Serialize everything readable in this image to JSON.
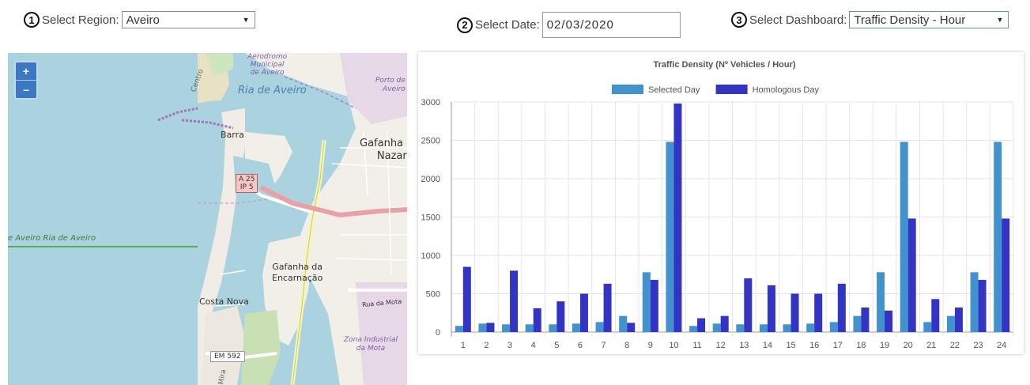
{
  "controls": {
    "region": {
      "step": "1",
      "label": "Select Region:",
      "value": "Aveiro"
    },
    "date": {
      "step": "2",
      "label": "Select Date:",
      "value": "02/03/2020"
    },
    "dashboard": {
      "step": "3",
      "label": "Select Dashboard:",
      "value": "Traffic Density - Hour"
    }
  },
  "map": {
    "zoom_in": "+",
    "zoom_out": "–",
    "labels": {
      "aerodromo": "Aerodromo\nMunicipal\nde Aveiro",
      "centro": "Centro",
      "ria_top": "Ria de Aveiro",
      "porto": "Porto de\nAveiro",
      "barra": "Barra",
      "gafanha_nazare": "Gafanha d\nNazaré",
      "road_badge": "A 25\nIP 5",
      "ria_left": "e Aveiro  Ria de Aveiro",
      "gafanha_enc": "Gafanha da\nEncarnação",
      "costa_nova": "Costa Nova",
      "rua_mota": "Rua da Mota",
      "zona_industrial": "Zona Industrial\nda Mota",
      "em592": "EM 592",
      "mira": "Mira"
    }
  },
  "chart_data": {
    "type": "bar",
    "title": "Traffic Density (Nº Vehicles / Hour)",
    "categories": [
      "1",
      "2",
      "3",
      "4",
      "5",
      "6",
      "7",
      "8",
      "9",
      "10",
      "11",
      "12",
      "13",
      "14",
      "15",
      "16",
      "17",
      "18",
      "19",
      "20",
      "21",
      "22",
      "23",
      "24"
    ],
    "series": [
      {
        "name": "Selected Day",
        "color": "#4292cf",
        "values": [
          80,
          110,
          100,
          100,
          100,
          110,
          130,
          210,
          780,
          2480,
          80,
          110,
          100,
          100,
          100,
          110,
          130,
          210,
          780,
          2480,
          130,
          210,
          780,
          2480
        ]
      },
      {
        "name": "Homologous Day",
        "color": "#3333c4",
        "values": [
          850,
          120,
          800,
          310,
          400,
          500,
          630,
          120,
          680,
          2980,
          180,
          210,
          700,
          610,
          500,
          500,
          630,
          320,
          280,
          1480,
          430,
          320,
          680,
          1480
        ]
      }
    ],
    "yticks": [
      0,
      500,
      1000,
      1500,
      2000,
      2500,
      3000
    ],
    "ylim": [
      0,
      3000
    ],
    "grid": true,
    "legend": "top"
  }
}
